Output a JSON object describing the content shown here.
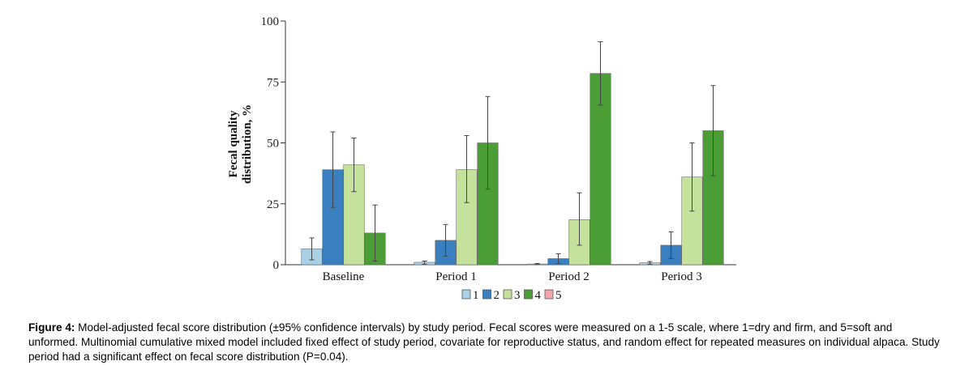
{
  "chart_data": {
    "type": "bar",
    "ylabel_line1": "Fecal quality",
    "ylabel_line2": "distribution, %",
    "ylim": [
      0,
      100
    ],
    "yticks": [
      0,
      25,
      50,
      75,
      100
    ],
    "categories": [
      "Baseline",
      "Period 1",
      "Period 2",
      "Period 3"
    ],
    "series": [
      {
        "name": "1",
        "color": "#a9d0e6",
        "values": [
          6.5,
          1.0,
          0.3,
          0.8
        ],
        "err_low": [
          2.0,
          0.2,
          0.0,
          0.2
        ],
        "err_high": [
          11.0,
          1.5,
          0.5,
          1.3
        ]
      },
      {
        "name": "2",
        "color": "#3a7fc0",
        "values": [
          39.0,
          10.0,
          2.5,
          8.0
        ],
        "err_low": [
          23.5,
          3.5,
          0.5,
          2.5
        ],
        "err_high": [
          54.5,
          16.5,
          4.5,
          13.5
        ]
      },
      {
        "name": "3",
        "color": "#c5e29c",
        "values": [
          41.0,
          39.0,
          18.5,
          36.0
        ],
        "err_low": [
          30.0,
          25.5,
          8.0,
          22.0
        ],
        "err_high": [
          52.0,
          53.0,
          29.5,
          50.0
        ]
      },
      {
        "name": "4",
        "color": "#4a9e35",
        "values": [
          13.0,
          50.0,
          78.5,
          55.0
        ],
        "err_low": [
          1.5,
          31.0,
          65.5,
          36.5
        ],
        "err_high": [
          24.5,
          69.0,
          91.5,
          73.5
        ]
      },
      {
        "name": "5",
        "color": "#f2a7ad",
        "values": [
          0,
          0,
          0,
          0
        ],
        "err_low": [
          0,
          0,
          0,
          0
        ],
        "err_high": [
          0,
          0,
          0,
          0
        ]
      }
    ]
  },
  "caption": {
    "label": "Figure 4:",
    "text": " Model-adjusted fecal score distribution (±95% confidence intervals) by study period. Fecal scores were measured on a 1-5 scale, where 1=dry and firm, and 5=soft and unformed. Multinomial cumulative mixed model included fixed effect of study period, covariate for reproductive status, and random effect for repeated measures on individual alpaca. Study period had a significant effect on fecal score distribution (P=0.04)."
  }
}
